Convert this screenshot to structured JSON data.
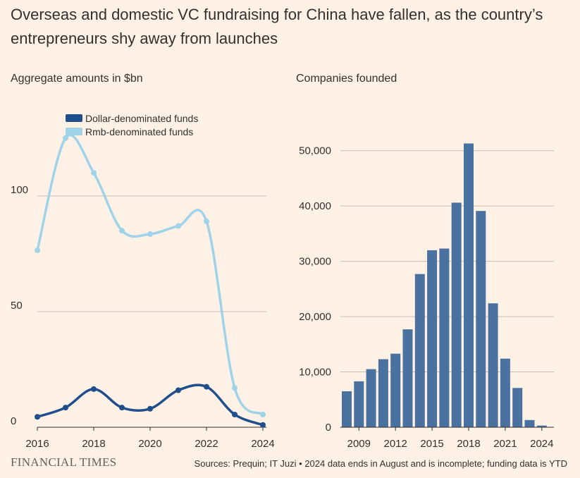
{
  "title": "Overseas and domestic VC fundraising for China have fallen, as the country’s entrepreneurs shy away from launches",
  "brand": "FINANCIAL TIMES",
  "source": "Sources: Prequin; IT Juzi • 2024 data ends in August and is incomplete; funding data is YTD",
  "colors": {
    "background": "#fff1e5",
    "dollar": "#1f4e8c",
    "rmb": "#9fd3e9",
    "bars": "#4a72a0",
    "grid": "#c9bdb3"
  },
  "chart_data": [
    {
      "type": "line",
      "subtitle": "Aggregate amounts in $bn",
      "x": [
        2016,
        2017,
        2018,
        2019,
        2020,
        2021,
        2022,
        2023,
        2024
      ],
      "xticks": [
        "2016",
        "2018",
        "2020",
        "2022",
        "2024"
      ],
      "yticks": [
        "0",
        "50",
        "100"
      ],
      "ylim": [
        0,
        128
      ],
      "legend_position": "top-left",
      "series": [
        {
          "name": "Dollar-denominated funds",
          "values": [
            4.5,
            8.5,
            16.5,
            8.5,
            8,
            16,
            17.5,
            5.5,
            1
          ]
        },
        {
          "name": "Rmb-denominated funds",
          "values": [
            76.5,
            125,
            110,
            85,
            83.5,
            87,
            89,
            17,
            5.5
          ]
        }
      ]
    },
    {
      "type": "bar",
      "subtitle": "Companies founded",
      "x": [
        2008,
        2009,
        2010,
        2011,
        2012,
        2013,
        2014,
        2015,
        2016,
        2017,
        2018,
        2019,
        2020,
        2021,
        2022,
        2023,
        2024
      ],
      "values": [
        6500,
        8300,
        10500,
        12300,
        13300,
        17700,
        27700,
        32000,
        32300,
        40600,
        51300,
        39100,
        22400,
        12400,
        7100,
        1300,
        300
      ],
      "xticks": [
        "2009",
        "2012",
        "2015",
        "2018",
        "2021",
        "2024"
      ],
      "yticks": [
        "0",
        "10,000",
        "20,000",
        "30,000",
        "40,000",
        "50,000"
      ],
      "ylim": [
        0,
        52000
      ]
    }
  ]
}
